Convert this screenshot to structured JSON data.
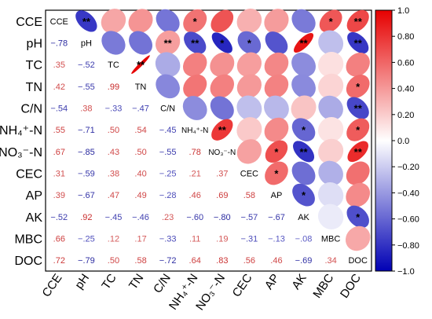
{
  "chart_data": {
    "type": "heatmap",
    "variables": [
      "CCE",
      "pH",
      "TC",
      "TN",
      "C/N",
      "NH₄⁺-N",
      "NO₃⁻-N",
      "CEC",
      "AP",
      "AK",
      "MBC",
      "DOC"
    ],
    "significance_marker": "*",
    "colorbar": {
      "range": [
        -1.0,
        1.0
      ],
      "ticks": [
        1.0,
        0.8,
        0.6,
        0.4,
        0.2,
        0.0,
        -0.2,
        -0.4,
        -0.6,
        -0.8,
        -1.0
      ],
      "tick_labels": [
        "1.0",
        "0.80",
        "0.60",
        "0.40",
        "0.20",
        "0.0",
        "−0.20",
        "−0.40",
        "−0.60",
        "−0.80",
        "−1.0"
      ],
      "colors": {
        "negative": "#0000b4",
        "zero": "#ffffff",
        "positive": "#e60000"
      }
    },
    "correlations": [
      [
        1.0,
        -0.78,
        0.35,
        0.42,
        -0.54,
        0.55,
        0.67,
        0.31,
        0.39,
        -0.52,
        0.66,
        0.72
      ],
      [
        -0.78,
        1.0,
        -0.52,
        -0.55,
        0.38,
        -0.71,
        -0.85,
        -0.59,
        -0.67,
        0.92,
        -0.25,
        -0.79
      ],
      [
        0.35,
        -0.52,
        1.0,
        0.99,
        -0.33,
        0.5,
        0.43,
        0.38,
        0.47,
        -0.45,
        0.12,
        0.5
      ],
      [
        0.42,
        -0.55,
        0.99,
        1.0,
        -0.47,
        0.54,
        0.5,
        0.4,
        0.49,
        -0.46,
        0.17,
        0.58
      ],
      [
        -0.54,
        0.38,
        -0.33,
        -0.47,
        1.0,
        -0.45,
        -0.55,
        -0.25,
        -0.28,
        0.23,
        -0.33,
        -0.72
      ],
      [
        0.55,
        -0.71,
        0.5,
        0.54,
        -0.45,
        1.0,
        0.78,
        0.21,
        0.46,
        -0.6,
        0.11,
        0.64
      ],
      [
        0.67,
        -0.85,
        0.43,
        0.5,
        -0.55,
        0.78,
        1.0,
        0.37,
        0.69,
        -0.8,
        0.19,
        0.83
      ],
      [
        0.31,
        -0.59,
        0.38,
        0.4,
        -0.25,
        0.21,
        0.37,
        1.0,
        0.58,
        -0.57,
        -0.31,
        0.56
      ],
      [
        0.39,
        -0.67,
        0.47,
        0.49,
        -0.28,
        0.46,
        0.69,
        0.58,
        1.0,
        -0.67,
        -0.13,
        0.46
      ],
      [
        -0.52,
        0.92,
        -0.45,
        -0.46,
        0.23,
        -0.6,
        -0.8,
        -0.57,
        -0.67,
        1.0,
        -0.08,
        -0.69
      ],
      [
        0.66,
        -0.25,
        0.12,
        0.17,
        -0.33,
        0.11,
        0.19,
        -0.31,
        -0.13,
        -0.08,
        1.0,
        0.34
      ],
      [
        0.72,
        -0.79,
        0.5,
        0.58,
        -0.72,
        0.64,
        0.83,
        0.56,
        0.46,
        -0.69,
        0.34,
        1.0
      ]
    ],
    "significance": [
      [
        "",
        "**",
        "",
        "",
        "",
        "*",
        "",
        "",
        "",
        "",
        "*",
        "**"
      ],
      [
        "",
        "",
        "",
        "",
        "**",
        "**",
        "*",
        "*",
        "",
        "**",
        "",
        "**"
      ],
      [
        "",
        "",
        "",
        "**",
        "",
        "",
        "",
        "",
        "",
        "",
        "",
        ""
      ],
      [
        "",
        "",
        "",
        "",
        "",
        "",
        "",
        "",
        "",
        "",
        "",
        "*"
      ],
      [
        "",
        "",
        "",
        "",
        "",
        "",
        "",
        "",
        "",
        "",
        "",
        "**"
      ],
      [
        "",
        "",
        "",
        "",
        "",
        "",
        "**",
        "",
        "",
        "*",
        "",
        "*"
      ],
      [
        "",
        "",
        "",
        "",
        "",
        "",
        "",
        "",
        "*",
        "**",
        "",
        "**"
      ],
      [
        "",
        "",
        "",
        "",
        "",
        "",
        "",
        "",
        "*",
        "",
        "",
        ""
      ],
      [
        "",
        "",
        "",
        "",
        "",
        "",
        "",
        "",
        "",
        "*",
        "",
        ""
      ],
      [
        "",
        "",
        "",
        "",
        "",
        "",
        "",
        "",
        "",
        "",
        "",
        "*"
      ],
      [
        "",
        "",
        "",
        "",
        "",
        "",
        "",
        "",
        "",
        "",
        "",
        ""
      ],
      [
        "",
        "",
        "",
        "",
        "",
        "",
        "",
        "",
        "",
        "",
        "",
        ""
      ]
    ],
    "display": {
      "upper_triangle": "ellipse",
      "lower_triangle": "number",
      "diagonal": "variable-name",
      "grid": false
    }
  }
}
